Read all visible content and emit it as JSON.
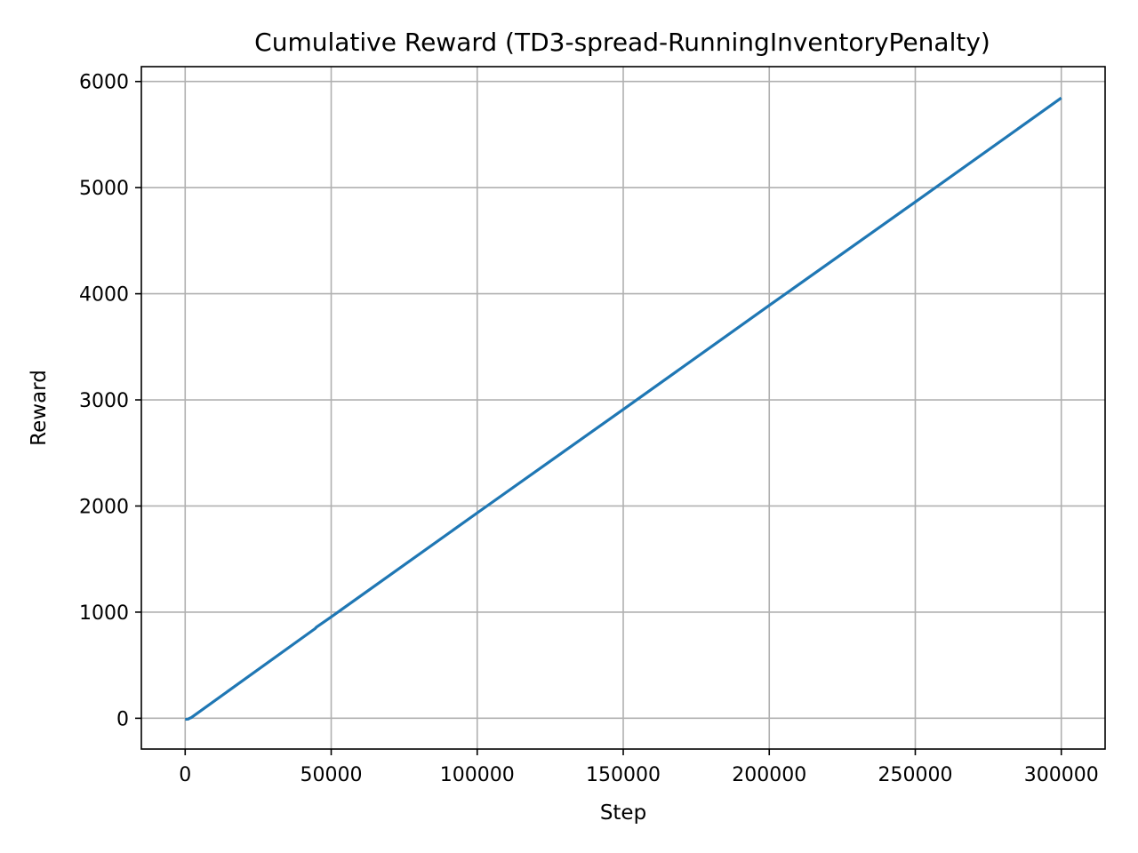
{
  "chart_data": {
    "type": "line",
    "title": "Cumulative Reward (TD3-spread-RunningInventoryPenalty)",
    "xlabel": "Step",
    "ylabel": "Reward",
    "xlim": [
      -15000,
      315000
    ],
    "ylim": [
      -290,
      6140
    ],
    "xticks": [
      0,
      50000,
      100000,
      150000,
      200000,
      250000,
      300000
    ],
    "xtick_labels": [
      "0",
      "50000",
      "100000",
      "150000",
      "200000",
      "250000",
      "300000"
    ],
    "yticks": [
      0,
      1000,
      2000,
      3000,
      4000,
      5000,
      6000
    ],
    "ytick_labels": [
      "0",
      "1000",
      "2000",
      "3000",
      "4000",
      "5000",
      "6000"
    ],
    "grid": true,
    "colors": {
      "series": "#1f77b4"
    },
    "series": [
      {
        "x": [
          0,
          1000,
          1500,
          2000,
          44000,
          44500,
          45000,
          50000,
          100000,
          150000,
          200000,
          250000,
          300000
        ],
        "values": [
          -10,
          -8,
          0,
          5,
          835,
          845,
          860,
          955,
          1935,
          2910,
          3890,
          4865,
          5845
        ]
      }
    ]
  }
}
